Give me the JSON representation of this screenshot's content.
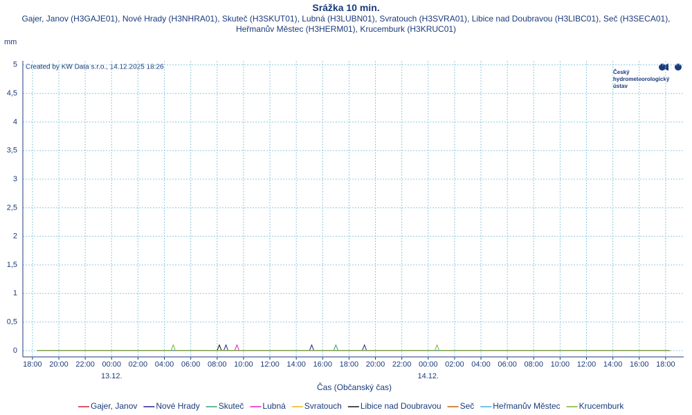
{
  "chart_data": {
    "type": "line",
    "title": "Srážka 10 min.",
    "subtitle": "Gajer, Janov (H3GAJE01), Nové Hrady (H3NHRA01), Skuteč (H3SKUT01), Lubná (H3LUBN01), Svratouch (H3SVRA01), Libice nad Doubravou (H3LIBC01), Seč (H3SECA01), Heřmanův Městec (H3HERM01), Krucemburk (H3KRUC01)",
    "y_label": "mm",
    "x_label": "Čas (Občanský čas)",
    "annotation": "Created by KW Data s.r.o., 14.12.2025 18:26",
    "logo": [
      "Český",
      "hydrometeorologický",
      "ústav"
    ],
    "grid": true,
    "xlim": [
      -0.73,
      49.37
    ],
    "ylim": [
      -0.11,
      5.07
    ],
    "yticks": [
      0,
      {
        "value": 0.5,
        "label": "0,5"
      },
      1,
      {
        "value": 1.5,
        "label": "1,5"
      },
      2,
      {
        "value": 2.5,
        "label": "2,5"
      },
      3,
      {
        "value": 3.5,
        "label": "3,5"
      },
      4,
      {
        "value": 4.5,
        "label": "4,5"
      },
      5
    ],
    "xticks": [
      {
        "value": 0,
        "label": "18:00"
      },
      {
        "value": 2,
        "label": "20:00"
      },
      {
        "value": 4,
        "label": "22:00"
      },
      {
        "value": 6,
        "label": "00:00"
      },
      {
        "value": 8,
        "label": "02:00"
      },
      {
        "value": 10,
        "label": "04:00"
      },
      {
        "value": 12,
        "label": "06:00"
      },
      {
        "value": 14,
        "label": "08:00"
      },
      {
        "value": 16,
        "label": "10:00"
      },
      {
        "value": 18,
        "label": "12:00"
      },
      {
        "value": 20,
        "label": "14:00"
      },
      {
        "value": 22,
        "label": "16:00"
      },
      {
        "value": 24,
        "label": "18:00"
      },
      {
        "value": 26,
        "label": "20:00"
      },
      {
        "value": 28,
        "label": "22:00"
      },
      {
        "value": 30,
        "label": "00:00"
      },
      {
        "value": 32,
        "label": "02:00"
      },
      {
        "value": 34,
        "label": "04:00"
      },
      {
        "value": 36,
        "label": "06:00"
      },
      {
        "value": 38,
        "label": "08:00"
      },
      {
        "value": 40,
        "label": "10:00"
      },
      {
        "value": 42,
        "label": "12:00"
      },
      {
        "value": 44,
        "label": "14:00"
      },
      {
        "value": 46,
        "label": "16:00"
      },
      {
        "value": 48,
        "label": "18:00"
      }
    ],
    "xdates": [
      {
        "value": 6,
        "label": "13.12."
      },
      {
        "value": 30,
        "label": "14.12."
      }
    ],
    "series": [
      {
        "name": "Gajer, Janov",
        "color": "#d02030",
        "x": [
          0.33,
          48.33
        ],
        "values": [
          0,
          0
        ]
      },
      {
        "name": "Nové Hrady",
        "color": "#2a1f8f",
        "x": [
          0.33,
          14.5,
          14.67,
          14.83,
          21,
          21.17,
          21.33,
          25,
          25.17,
          25.33,
          48.33
        ],
        "values": [
          0,
          0,
          0.1,
          0,
          0,
          0.1,
          0,
          0,
          0.1,
          0,
          0
        ]
      },
      {
        "name": "Skuteč",
        "color": "#30a080",
        "x": [
          0.33,
          22.83,
          23,
          23.17,
          48.33
        ],
        "values": [
          0,
          0,
          0.1,
          0,
          0
        ]
      },
      {
        "name": "Lubná",
        "color": "#e020c0",
        "x": [
          0.33,
          15.33,
          15.5,
          15.67,
          48.33
        ],
        "values": [
          0,
          0,
          0.1,
          0,
          0
        ]
      },
      {
        "name": "Svratouch",
        "color": "#f0b020",
        "x": [
          0.33,
          48.33
        ],
        "values": [
          0,
          0
        ]
      },
      {
        "name": "Libice nad Doubravou",
        "color": "#101010",
        "x": [
          0.33,
          14,
          14.17,
          14.33,
          48.33
        ],
        "values": [
          0,
          0,
          0.1,
          0,
          0
        ]
      },
      {
        "name": "Seč",
        "color": "#c06010",
        "x": [
          0.33,
          48.33
        ],
        "values": [
          0,
          0
        ]
      },
      {
        "name": "Heřmanův Městec",
        "color": "#40b0e0",
        "x": [
          0.33,
          48.33
        ],
        "values": [
          0,
          0
        ]
      },
      {
        "name": "Krucemburk",
        "color": "#80b030",
        "x": [
          0.33,
          10.5,
          10.67,
          10.83,
          30.5,
          30.67,
          30.83,
          48.33
        ],
        "values": [
          0,
          0,
          0.1,
          0,
          0,
          0.1,
          0,
          0
        ]
      }
    ]
  }
}
